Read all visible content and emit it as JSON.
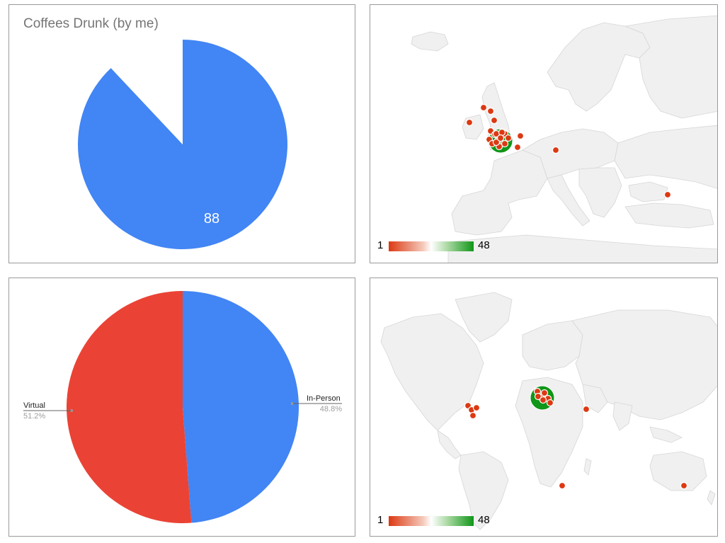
{
  "chart_data": [
    {
      "type": "pie",
      "title": "Coffees Drunk (by me)",
      "slices": [
        {
          "label": "",
          "value": 88,
          "color": "#4285f4"
        },
        {
          "label": "",
          "value": 12,
          "color": "#ffffff"
        }
      ],
      "data_labels": [
        "88"
      ],
      "start_angle_deg": 0
    },
    {
      "type": "geo",
      "region": "Europe",
      "color_axis": {
        "min": 1,
        "max": 48,
        "colors": [
          "#dc3912",
          "#ffffff",
          "#109618"
        ]
      },
      "markers": [
        {
          "label": "",
          "value": 48,
          "color": "#109618"
        },
        {
          "label": "",
          "value": 1,
          "color": "#dc3912"
        }
      ],
      "legend": {
        "min_label": "1",
        "max_label": "48"
      }
    },
    {
      "type": "pie",
      "title": "",
      "slices": [
        {
          "label": "In-Person",
          "value": 48.8,
          "percent_label": "48.8%",
          "color": "#4285f4"
        },
        {
          "label": "Virtual",
          "value": 51.2,
          "percent_label": "51.2%",
          "color": "#ea4335"
        }
      ],
      "legend": "labeled"
    },
    {
      "type": "geo",
      "region": "World",
      "color_axis": {
        "min": 1,
        "max": 48,
        "colors": [
          "#dc3912",
          "#ffffff",
          "#109618"
        ]
      },
      "markers": [
        {
          "label": "",
          "value": 48,
          "color": "#109618"
        },
        {
          "label": "",
          "value": 1,
          "color": "#dc3912"
        }
      ],
      "legend": {
        "min_label": "1",
        "max_label": "48"
      }
    }
  ]
}
